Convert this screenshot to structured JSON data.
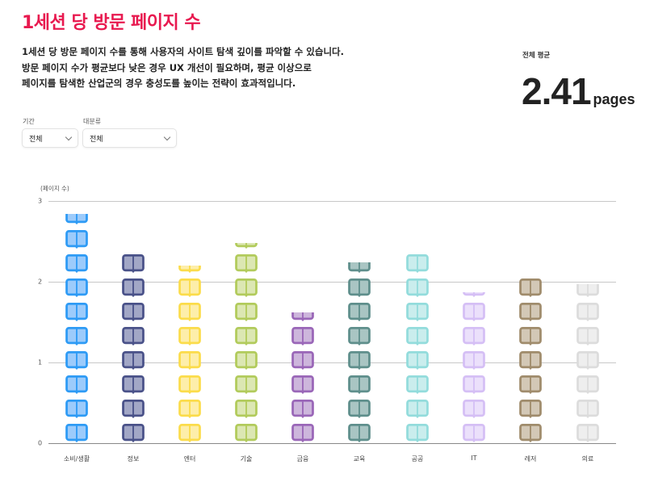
{
  "header": {
    "title": "1세션 당 방문 페이지 수",
    "description": [
      "1세션 당 방문 페이지 수를 통해 사용자의 사이트 탐색 깊이를 파악할 수 있습니다.",
      "방문 페이지 수가 평균보다 낮은 경우 UX 개선이 필요하며, 평균 이상으로",
      "페이지를 탐색한 산업군의 경우 충성도를 높이는 전략이 효과적입니다."
    ]
  },
  "summary": {
    "label": "전체 평균",
    "value": "2.41",
    "unit": "pages"
  },
  "filters": [
    {
      "label": "기간",
      "value": "전체"
    },
    {
      "label": "대분류",
      "value": "전체"
    }
  ],
  "chart_data": {
    "type": "bar",
    "subtype": "pictograph",
    "icon": "open-book-icon",
    "title": "1세션 당 방문 페이지 수",
    "xlabel": "",
    "ylabel": "(페이지 수)",
    "ylim": [
      0,
      3
    ],
    "yticks": [
      0,
      1,
      2,
      3
    ],
    "grid": true,
    "categories": [
      "소비/생활",
      "정보",
      "엔터",
      "기술",
      "금융",
      "교육",
      "공공",
      "IT",
      "레저",
      "의료"
    ],
    "values": [
      2.84,
      2.39,
      2.2,
      2.48,
      1.62,
      2.24,
      2.39,
      1.87,
      2.08,
      1.97
    ],
    "colors": [
      {
        "stroke": "#2e9bf5",
        "fill": "#9ccbfb"
      },
      {
        "stroke": "#4a5289",
        "fill": "#a2a7c6"
      },
      {
        "stroke": "#fbdc4b",
        "fill": "#fdeeaa"
      },
      {
        "stroke": "#b2cb5c",
        "fill": "#dce7b3"
      },
      {
        "stroke": "#9a67b8",
        "fill": "#cdb6dc"
      },
      {
        "stroke": "#5f8f8c",
        "fill": "#a9c5c3"
      },
      {
        "stroke": "#93dcdc",
        "fill": "#caeded"
      },
      {
        "stroke": "#d5bff5",
        "fill": "#ebe0fb"
      },
      {
        "stroke": "#a08c6c",
        "fill": "#d3c8b6"
      },
      {
        "stroke": "#dcdcdc",
        "fill": "#eeeeee"
      }
    ],
    "average": 2.41
  }
}
